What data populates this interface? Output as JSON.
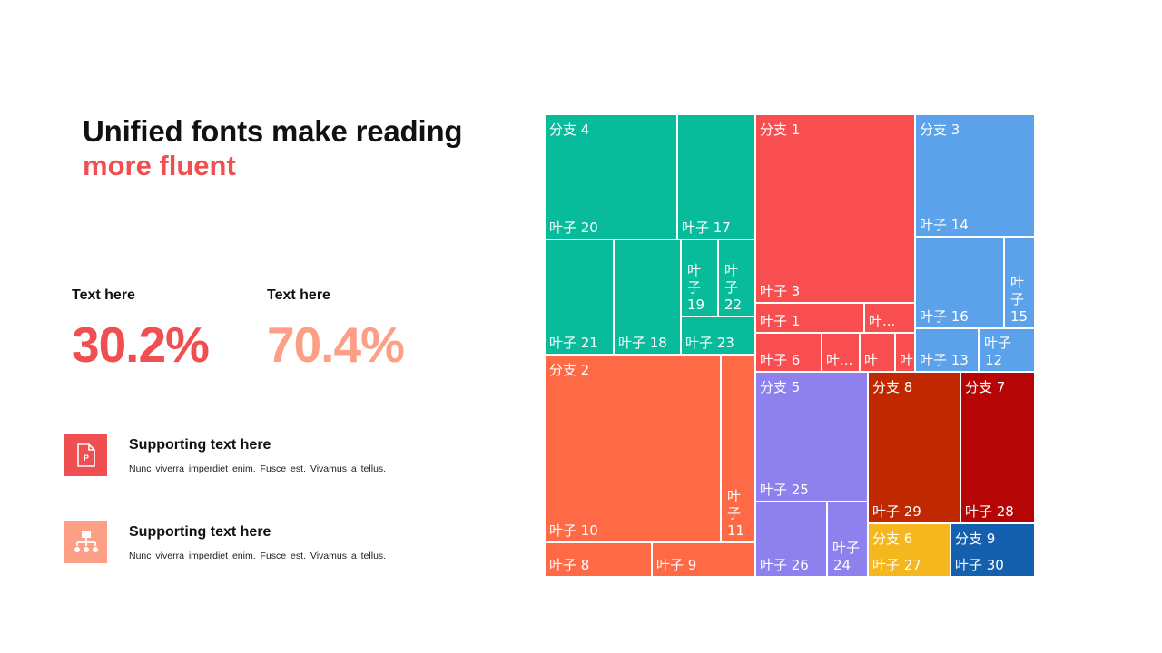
{
  "title": {
    "line1": "Unified fonts make reading",
    "line2": "more fluent"
  },
  "colors": {
    "accent": "#f04f51",
    "accent_light": "#fd9f86",
    "text": "#111111"
  },
  "stats": [
    {
      "label": "Text here",
      "value": "30.2%"
    },
    {
      "label": "Text here",
      "value": "70.4%"
    }
  ],
  "features": [
    {
      "icon": "presentation-file-icon",
      "title": "Supporting text here",
      "desc": "Nunc viverra imperdiet enim. Fusce est. Vivamus a tellus."
    },
    {
      "icon": "org-chart-icon",
      "title": "Supporting text here",
      "desc": "Nunc viverra imperdiet enim. Fusce est. Vivamus a tellus."
    }
  ],
  "chart_data": {
    "type": "treemap",
    "branches": [
      {
        "label": "分支 4",
        "color": "#08bb9b",
        "leaves": [
          {
            "label": "叶子 20",
            "value": 18
          },
          {
            "label": "叶子 17",
            "value": 11
          },
          {
            "label": "叶子 21",
            "value": 10
          },
          {
            "label": "叶子 18",
            "value": 10
          },
          {
            "label": "叶子 19",
            "value": 3
          },
          {
            "label": "叶子 22",
            "value": 3
          },
          {
            "label": "叶子 23",
            "value": 5
          }
        ]
      },
      {
        "label": "分支 2",
        "color": "#fd6a45",
        "leaves": [
          {
            "label": "叶子 10",
            "value": 36
          },
          {
            "label": "叶子 11",
            "value": 7
          },
          {
            "label": "叶子 8",
            "value": 8
          },
          {
            "label": "叶子 9",
            "value": 6
          }
        ]
      },
      {
        "label": "分支 1",
        "color": "#f94e50",
        "leaves": [
          {
            "label": "叶子 3",
            "value": 33
          },
          {
            "label": "叶子 1",
            "value": 5
          },
          {
            "label": "叶...",
            "value": 2
          },
          {
            "label": "叶子 6",
            "value": 3
          },
          {
            "label": "叶...",
            "value": 2
          },
          {
            "label": "叶",
            "value": 2
          },
          {
            "label": "叶",
            "value": 1
          }
        ]
      },
      {
        "label": "分支 3",
        "color": "#5ba2eb",
        "leaves": [
          {
            "label": "叶子 14",
            "value": 15
          },
          {
            "label": "叶子 16",
            "value": 9
          },
          {
            "label": "叶子 15",
            "value": 3
          },
          {
            "label": "叶子 13",
            "value": 4
          },
          {
            "label": "叶子 12",
            "value": 3
          }
        ]
      },
      {
        "label": "分支 5",
        "color": "#8e80ed",
        "leaves": [
          {
            "label": "叶子 25",
            "value": 15
          },
          {
            "label": "叶子 26",
            "value": 7
          },
          {
            "label": "叶子 24",
            "value": 3
          }
        ]
      },
      {
        "label": "分支 8",
        "color": "#c02800",
        "leaves": [
          {
            "label": "叶子 29",
            "value": 14
          }
        ]
      },
      {
        "label": "分支 7",
        "color": "#b50605",
        "leaves": [
          {
            "label": "叶子 28",
            "value": 12
          }
        ]
      },
      {
        "label": "分支 6",
        "color": "#f4b81e",
        "leaves": [
          {
            "label": "叶子 27",
            "value": 4
          }
        ]
      },
      {
        "label": "分支 9",
        "color": "#1560ae",
        "leaves": [
          {
            "label": "叶子 30",
            "value": 4
          }
        ]
      }
    ]
  }
}
